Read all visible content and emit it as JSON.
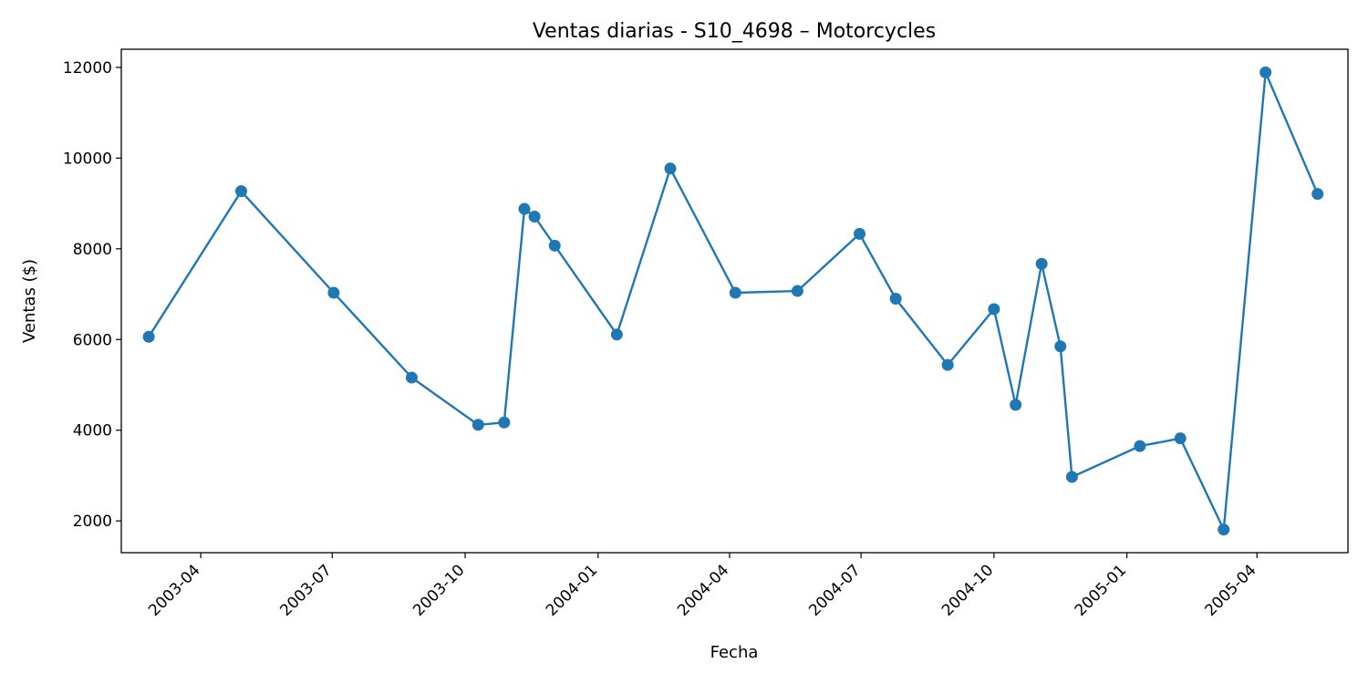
{
  "chart_data": {
    "type": "line",
    "title": "Ventas diarias - S10_4698 – Motorcycles",
    "xlabel": "Fecha",
    "ylabel": "Ventas ($)",
    "x_ticks": [
      "2003-04",
      "2003-07",
      "2003-10",
      "2004-01",
      "2004-04",
      "2004-07",
      "2004-10",
      "2005-01",
      "2005-04"
    ],
    "y_ticks": [
      2000,
      4000,
      6000,
      8000,
      10000,
      12000
    ],
    "xlim": [
      "2003-02-05",
      "2005-06-03"
    ],
    "ylim": [
      1300,
      12400
    ],
    "grid": false,
    "colors": {
      "series": "#1f77b4"
    },
    "series": [
      {
        "x": [
          "2003-02-24",
          "2003-04-29",
          "2003-07-02",
          "2003-08-25",
          "2003-10-10",
          "2003-10-28",
          "2003-11-11",
          "2003-11-18",
          "2003-12-02",
          "2004-01-14",
          "2004-02-20",
          "2004-04-05",
          "2004-05-18",
          "2004-06-30",
          "2004-07-25",
          "2004-08-30",
          "2004-10-01",
          "2004-10-16",
          "2004-11-03",
          "2004-11-16",
          "2004-11-24",
          "2005-01-10",
          "2005-02-07",
          "2005-03-09",
          "2005-04-07",
          "2005-05-13"
        ],
        "values": [
          6060,
          9270,
          7030,
          5160,
          4120,
          4170,
          8880,
          8710,
          8070,
          6110,
          9770,
          7030,
          7070,
          8330,
          6900,
          5440,
          6670,
          4560,
          7670,
          5850,
          2970,
          3650,
          3820,
          1810,
          11890,
          9210
        ]
      }
    ]
  }
}
